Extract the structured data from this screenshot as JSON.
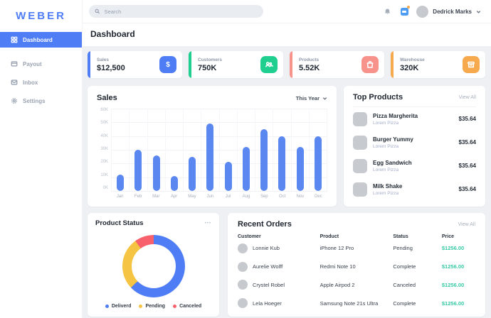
{
  "brand": {
    "logo_text": "WEBER"
  },
  "sidebar": {
    "items": [
      {
        "label": "Dashboard",
        "icon": "dashboard-icon",
        "active": true
      },
      {
        "label": "Payout",
        "icon": "wallet-icon",
        "active": false
      },
      {
        "label": "Inbox",
        "icon": "inbox-icon",
        "active": false
      },
      {
        "label": "Settings",
        "icon": "settings-icon",
        "active": false
      }
    ]
  },
  "topbar": {
    "search_placeholder": "Search",
    "user_name": "Dedrick Marks"
  },
  "page_title": "Dashboard",
  "stats": [
    {
      "label": "Sales",
      "value": "$12,500",
      "accent": "#4e7df5",
      "icon": "dollar-icon"
    },
    {
      "label": "Customers",
      "value": "750K",
      "accent": "#1fcf8f",
      "icon": "customers-icon"
    },
    {
      "label": "Products",
      "value": "5.52K",
      "accent": "#f7938a",
      "icon": "bag-icon"
    },
    {
      "label": "Warehouse",
      "value": "320K",
      "accent": "#f7a94d",
      "icon": "warehouse-icon"
    }
  ],
  "sales": {
    "title": "Sales",
    "filter_label": "This Year",
    "chart_data": {
      "type": "bar",
      "title": "Sales",
      "categories": [
        "Jan",
        "Feb",
        "Mar",
        "Apr",
        "May",
        "Jun",
        "Jul",
        "Aug",
        "Sep",
        "Oct",
        "Nov",
        "Dec"
      ],
      "values": [
        12,
        30,
        26,
        11,
        25,
        49,
        21,
        32,
        45,
        40,
        32,
        40
      ],
      "unit": "K",
      "ylim": [
        0,
        60
      ],
      "yticks": [
        "60K",
        "50K",
        "40K",
        "30K",
        "20K",
        "10K",
        "0K"
      ],
      "bar_color": "#5b87f0",
      "grid": true,
      "legend_position": "none"
    }
  },
  "top_products": {
    "title": "Top Products",
    "view_all_label": "View All",
    "items": [
      {
        "name": "Pizza Margherita",
        "subtitle": "Lorem Pizza",
        "price": "$35.64"
      },
      {
        "name": "Burger Yummy",
        "subtitle": "Lorem Pizza",
        "price": "$35.64"
      },
      {
        "name": "Egg Sandwich",
        "subtitle": "Lorem Pizza",
        "price": "$35.64"
      },
      {
        "name": "Milk Shake",
        "subtitle": "Lorem Pizza",
        "price": "$35.64"
      }
    ]
  },
  "product_status": {
    "title": "Product Status",
    "menu_label": "•••",
    "chart_data": {
      "type": "pie",
      "donut": true,
      "series": [
        {
          "name": "Deliverd",
          "value": 63,
          "color": "#4e7df5"
        },
        {
          "name": "Pending",
          "value": 27,
          "color": "#f6c443"
        },
        {
          "name": "Canceled",
          "value": 10,
          "color": "#f8616b"
        }
      ],
      "legend_position": "bottom"
    }
  },
  "recent_orders": {
    "title": "Recent Orders",
    "view_all_label": "View All",
    "columns": [
      "Customer",
      "Product",
      "Status",
      "Price"
    ],
    "price_color": "#36c9a5",
    "rows": [
      {
        "customer": "Lonnie Kub",
        "product": "iPhone 12 Pro",
        "status": "Pending",
        "price": "$1256.00"
      },
      {
        "customer": "Aurelie Wolff",
        "product": "Redmi Note 10",
        "status": "Complete",
        "price": "$1256.00"
      },
      {
        "customer": "Crystel Robel",
        "product": "Apple Airpod 2",
        "status": "Canceled",
        "price": "$1256.00"
      },
      {
        "customer": "Lela Hoeger",
        "product": "Samsung Note 21s Ultra",
        "status": "Complete",
        "price": "$1256.00"
      }
    ]
  }
}
